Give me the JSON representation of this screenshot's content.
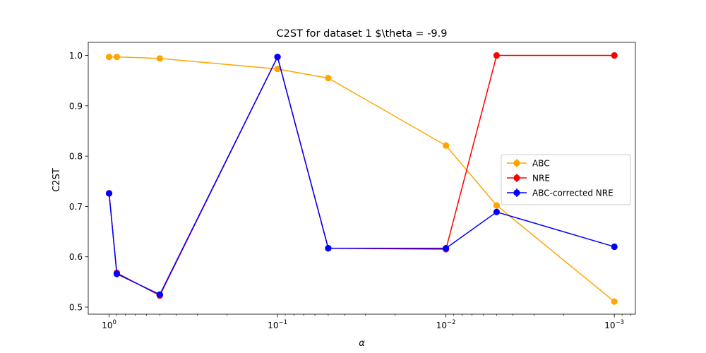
{
  "chart_data": {
    "type": "line",
    "title": "C2ST for dataset 1 $\\theta = -9.9",
    "xlabel": "α",
    "ylabel": "C2ST",
    "x_scale": "log",
    "x_reversed": true,
    "xlim": [
      1.33,
      0.00075
    ],
    "ylim": [
      0.486,
      1.026
    ],
    "x": [
      1.0,
      0.9,
      0.5,
      0.1,
      0.05,
      0.01,
      0.005,
      0.001
    ],
    "x_tick_labels": [
      "10^0",
      "10^-1",
      "10^-2",
      "10^-3"
    ],
    "y_ticks": [
      0.5,
      0.6,
      0.7,
      0.8,
      0.9,
      1.0
    ],
    "y_tick_labels": [
      "0.5",
      "0.6",
      "0.7",
      "0.8",
      "0.9",
      "1.0"
    ],
    "grid": false,
    "legend_position": "center-right",
    "series": [
      {
        "name": "ABC",
        "color": "#FFA500",
        "values": [
          0.997,
          0.997,
          0.994,
          0.973,
          0.955,
          0.821,
          0.702,
          0.511
        ]
      },
      {
        "name": "NRE",
        "color": "#FF0000",
        "values": [
          0.726,
          0.568,
          0.523,
          0.997,
          0.617,
          0.615,
          1.0,
          1.0
        ]
      },
      {
        "name": "ABC-corrected NRE",
        "color": "#0000FF",
        "values": [
          0.726,
          0.566,
          0.525,
          0.997,
          0.617,
          0.617,
          0.689,
          0.62
        ]
      }
    ]
  }
}
